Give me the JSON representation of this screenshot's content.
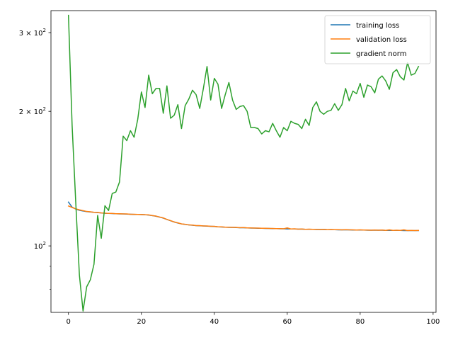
{
  "chart_data": {
    "type": "line",
    "title": "",
    "xlabel": "",
    "ylabel": "",
    "xlim": [
      -4.8,
      100.8
    ],
    "ylim": [
      71,
      336
    ],
    "yscale": "log",
    "grid": false,
    "legend_position": "top-right",
    "x_ticks": [
      0,
      20,
      40,
      60,
      80,
      100
    ],
    "x_tick_labels": [
      "0",
      "20",
      "40",
      "60",
      "80",
      "100"
    ],
    "y_major_ticks": [
      100,
      200,
      300
    ],
    "y_minor_ticks": [
      80,
      90
    ],
    "y_tick_labels": [
      "10^2",
      "2 × 10^2",
      "3 × 10^2"
    ],
    "series": [
      {
        "name": "training loss",
        "color": "#1f77b4",
        "x_start": 0,
        "x_step": 1,
        "values": [
          125.3,
          122.1,
          120.9,
          120.1,
          119.7,
          119.3,
          119.1,
          118.9,
          118.7,
          118.5,
          118.3,
          118.2,
          118.1,
          118.0,
          117.9,
          117.9,
          117.8,
          117.7,
          117.6,
          117.6,
          117.5,
          117.4,
          117.2,
          116.9,
          116.5,
          116.0,
          115.4,
          114.6,
          113.8,
          113.1,
          112.5,
          112.0,
          111.7,
          111.4,
          111.2,
          111.0,
          110.9,
          110.8,
          110.7,
          110.6,
          110.5,
          110.3,
          110.2,
          110.1,
          110.0,
          110.0,
          109.9,
          109.8,
          109.8,
          109.7,
          109.6,
          109.6,
          109.5,
          109.5,
          109.4,
          109.4,
          109.3,
          109.3,
          109.2,
          109.2,
          109.1,
          109.1,
          109.1,
          109.0,
          109.0,
          108.9,
          108.9,
          108.9,
          108.8,
          108.8,
          108.8,
          108.7,
          108.7,
          108.7,
          108.6,
          108.6,
          108.6,
          108.6,
          108.5,
          108.5,
          108.5,
          108.5,
          108.4,
          108.4,
          108.4,
          108.4,
          108.4,
          108.3,
          108.3,
          108.3,
          108.3,
          108.3,
          108.2,
          108.2,
          108.2,
          108.2,
          108.2
        ]
      },
      {
        "name": "validation loss",
        "color": "#ff7f0e",
        "x_start": 0,
        "x_step": 1,
        "values": [
          122.8,
          121.9,
          121.0,
          120.4,
          119.9,
          119.4,
          119.2,
          118.9,
          118.8,
          118.5,
          118.4,
          118.2,
          118.2,
          118.0,
          118.0,
          117.9,
          117.9,
          117.7,
          117.7,
          117.6,
          117.6,
          117.4,
          117.3,
          116.9,
          116.6,
          116.0,
          115.5,
          114.6,
          113.9,
          113.1,
          112.6,
          112.0,
          111.8,
          111.4,
          111.3,
          111.0,
          111.0,
          110.8,
          110.8,
          110.6,
          110.6,
          110.3,
          110.3,
          110.1,
          110.1,
          110.0,
          110.0,
          109.8,
          109.9,
          109.7,
          109.7,
          109.6,
          109.6,
          109.5,
          109.5,
          109.4,
          109.4,
          109.3,
          109.3,
          109.2,
          109.7,
          109.1,
          109.2,
          109.0,
          109.1,
          108.9,
          109.0,
          108.9,
          108.9,
          108.8,
          108.9,
          108.7,
          108.8,
          108.7,
          108.7,
          108.6,
          108.7,
          108.6,
          108.6,
          108.5,
          108.6,
          108.5,
          108.5,
          108.4,
          108.5,
          108.4,
          108.5,
          108.3,
          108.6,
          108.3,
          108.4,
          108.3,
          108.6,
          108.2,
          108.3,
          108.2,
          108.3
        ]
      },
      {
        "name": "gradient norm",
        "color": "#2ca02c",
        "x_start": 0,
        "x_step": 1,
        "values": [
          328,
          186,
          125,
          86,
          71.5,
          81,
          84,
          91,
          117,
          104,
          123,
          120,
          131,
          132,
          139,
          176,
          172,
          181,
          175,
          192,
          221,
          204,
          241,
          219,
          225,
          225,
          198,
          228,
          193,
          196,
          207,
          183,
          206,
          213,
          223,
          218,
          203,
          225,
          252,
          212,
          237,
          230,
          203,
          218,
          232,
          212,
          202,
          205,
          206,
          200,
          184,
          184,
          183,
          178,
          181,
          180,
          188,
          181,
          175,
          184,
          181,
          190,
          188,
          187,
          183,
          192,
          186,
          204,
          210,
          200,
          197,
          200,
          201,
          208,
          201,
          207,
          225,
          211,
          222,
          219,
          231,
          215,
          229,
          227,
          220,
          236,
          240,
          234,
          224,
          244,
          248,
          239,
          235,
          257,
          241,
          243,
          252
        ]
      }
    ]
  }
}
